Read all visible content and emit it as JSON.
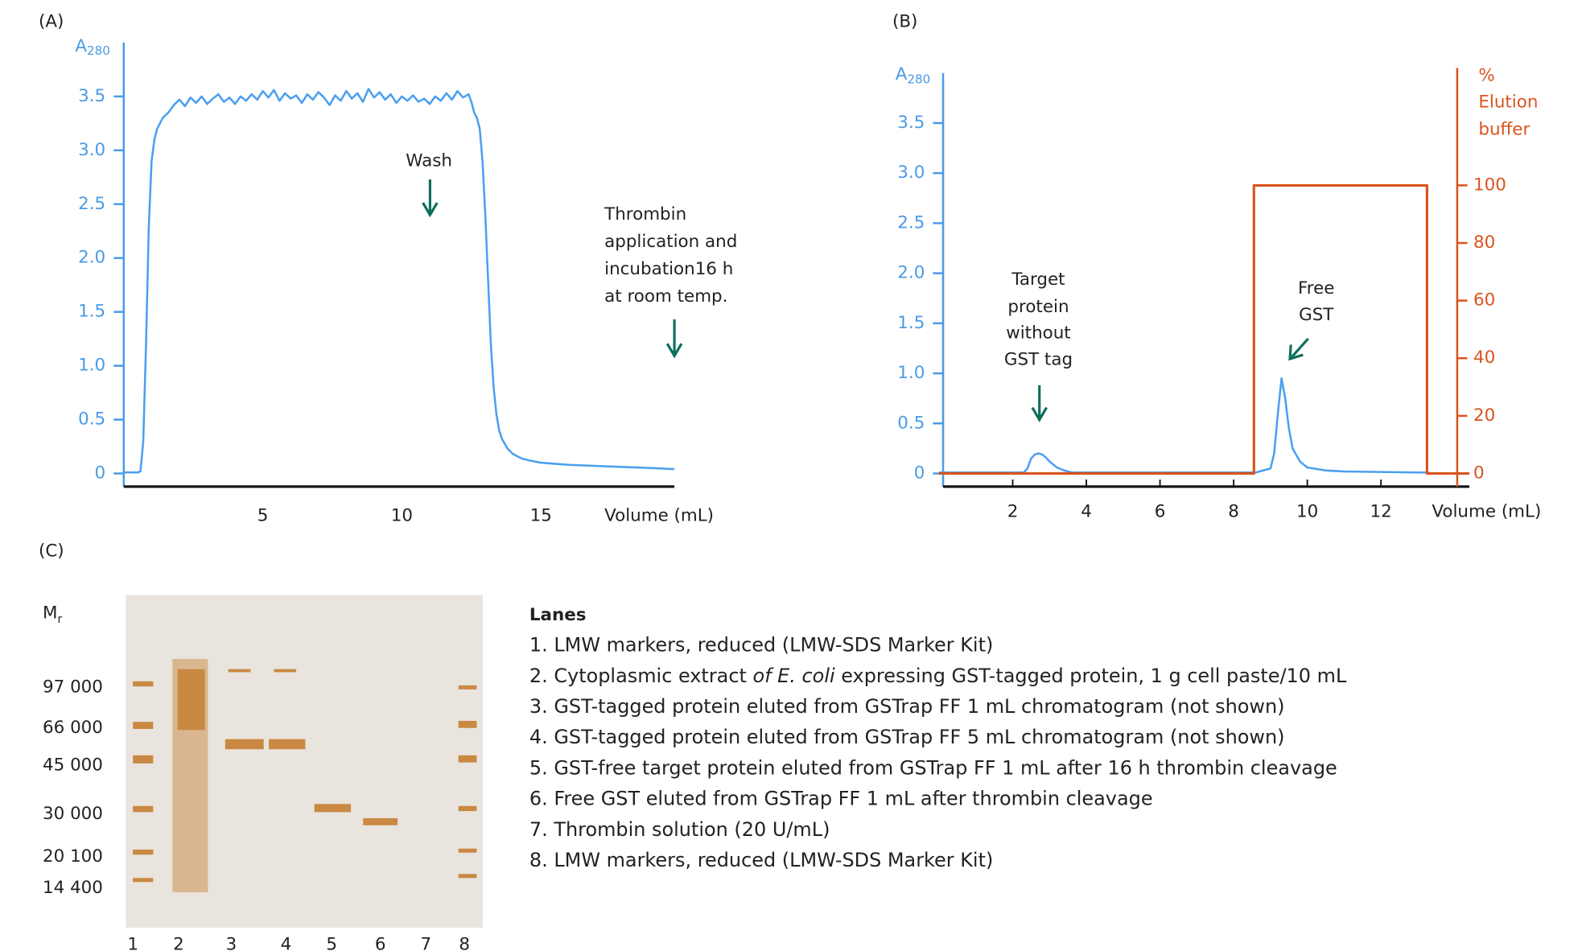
{
  "chart_data": [
    {
      "type": "line",
      "label": "(A)",
      "y_label": "A",
      "y_label_sub": "280",
      "x_label": "Volume (mL)",
      "xlim": [
        0,
        19.8
      ],
      "ylim": [
        0,
        4.0
      ],
      "xticks": [
        5,
        10,
        15
      ],
      "yticks": [
        0,
        0.5,
        {
          "value": 1,
          "label": "1.0"
        },
        1.5,
        {
          "value": 2,
          "label": "2.0"
        },
        2.5,
        {
          "value": 3,
          "label": "3.0"
        },
        3.5
      ],
      "annotations": [
        [
          "Wash"
        ],
        [
          "Thrombin",
          "application and",
          "incubation16 h",
          "at room temp."
        ]
      ],
      "series": [
        {
          "color": "#4a9ff0",
          "x": [
            0,
            0.5,
            0.6,
            0.7,
            0.8,
            0.9,
            1.0,
            1.1,
            1.2,
            1.3,
            1.4,
            1.6,
            1.8,
            2.0,
            2.2,
            2.4,
            2.6,
            2.8,
            3.0,
            3.2,
            3.4,
            3.6,
            3.8,
            4.0,
            4.2,
            4.4,
            4.6,
            4.8,
            5.0,
            5.2,
            5.4,
            5.6,
            5.8,
            6.0,
            6.2,
            6.4,
            6.6,
            6.8,
            7.0,
            7.2,
            7.4,
            7.6,
            7.8,
            8.0,
            8.2,
            8.4,
            8.6,
            8.8,
            9.0,
            9.2,
            9.4,
            9.6,
            9.8,
            10.0,
            10.2,
            10.4,
            10.6,
            10.8,
            11.0,
            11.2,
            11.4,
            11.6,
            11.8,
            12.0,
            12.2,
            12.4,
            12.5,
            12.6,
            12.7,
            12.8,
            12.9,
            13.0,
            13.1,
            13.2,
            13.3,
            13.4,
            13.5,
            13.6,
            13.8,
            14.0,
            14.3,
            14.6,
            15,
            15.5,
            16,
            17,
            18,
            19,
            19.8
          ],
          "values": [
            0.01,
            0.01,
            0.02,
            0.3,
            1.2,
            2.3,
            2.9,
            3.1,
            3.2,
            3.25,
            3.3,
            3.35,
            3.42,
            3.47,
            3.41,
            3.49,
            3.44,
            3.5,
            3.43,
            3.48,
            3.52,
            3.45,
            3.49,
            3.43,
            3.5,
            3.46,
            3.52,
            3.47,
            3.55,
            3.49,
            3.56,
            3.46,
            3.53,
            3.48,
            3.51,
            3.44,
            3.52,
            3.47,
            3.54,
            3.49,
            3.42,
            3.51,
            3.46,
            3.55,
            3.48,
            3.53,
            3.45,
            3.57,
            3.49,
            3.54,
            3.47,
            3.52,
            3.44,
            3.5,
            3.46,
            3.51,
            3.45,
            3.48,
            3.43,
            3.5,
            3.46,
            3.53,
            3.47,
            3.55,
            3.49,
            3.52,
            3.45,
            3.35,
            3.3,
            3.2,
            2.9,
            2.4,
            1.8,
            1.2,
            0.8,
            0.55,
            0.4,
            0.32,
            0.23,
            0.18,
            0.14,
            0.12,
            0.1,
            0.09,
            0.08,
            0.07,
            0.06,
            0.05,
            0.04
          ]
        }
      ]
    },
    {
      "type": "line",
      "label": "(B)",
      "y_label": "A",
      "y_label_sub": "280",
      "x_label": "Volume (mL)",
      "y2_label": [
        "%",
        "Elution",
        "buffer"
      ],
      "xlim": [
        0,
        14.4
      ],
      "ylim": [
        0,
        4.0
      ],
      "y2lim": [
        0,
        139
      ],
      "xticks": [
        2,
        4,
        6,
        8,
        10,
        12
      ],
      "yticks": [
        0,
        0.5,
        {
          "value": 1,
          "label": "1.0"
        },
        1.5,
        {
          "value": 2,
          "label": "2.0"
        },
        2.5,
        {
          "value": 3,
          "label": "3.0"
        },
        3.5
      ],
      "y2ticks": [
        0,
        20,
        40,
        60,
        80,
        100
      ],
      "annotations": [
        [
          "Target",
          "protein",
          "without",
          "GST tag"
        ],
        [
          "Free",
          "GST"
        ]
      ],
      "series": [
        {
          "color": "#4a9ff0",
          "x": [
            0,
            2.3,
            2.4,
            2.5,
            2.6,
            2.7,
            2.8,
            2.9,
            3.0,
            3.2,
            3.4,
            3.6,
            4.0,
            6,
            8,
            8.6,
            9.0,
            9.1,
            9.2,
            9.3,
            9.4,
            9.5,
            9.6,
            9.8,
            10.0,
            10.5,
            11,
            12,
            13,
            13.3
          ],
          "values": [
            0.01,
            0.01,
            0.05,
            0.15,
            0.19,
            0.2,
            0.19,
            0.16,
            0.12,
            0.06,
            0.03,
            0.01,
            0.01,
            0.01,
            0.01,
            0.01,
            0.05,
            0.2,
            0.6,
            0.95,
            0.75,
            0.45,
            0.25,
            0.12,
            0.06,
            0.03,
            0.02,
            0.015,
            0.01,
            0.01
          ]
        },
        {
          "color": "#d9541e",
          "axis": "y2",
          "x": [
            0,
            8.55,
            8.55,
            13.25,
            13.25,
            14.4
          ],
          "values": [
            0,
            0,
            100,
            100,
            0,
            0
          ]
        }
      ]
    }
  ],
  "gel": {
    "label": "(C)",
    "mr_label": "M",
    "mr_sub": "r",
    "markers": [
      "97 000",
      "66 000",
      "45 000",
      "30 000",
      "20 100",
      "14 400"
    ],
    "lane_numbers": [
      "1",
      "2",
      "3",
      "4",
      "5",
      "6",
      "7",
      "8"
    ],
    "lanes_title": "Lanes",
    "lanes": [
      [
        "1. LMW markers, reduced (LMW-SDS Marker Kit)"
      ],
      [
        "2. Cytoplasmic extract ",
        "of E. coli",
        " expressing GST-tagged protein, 1 g cell paste/10 mL"
      ],
      [
        "3. GST-tagged protein eluted from GSTrap FF 1 mL chromatogram (not shown)"
      ],
      [
        "4. GST-tagged protein eluted from GSTrap FF 5 mL chromatogram (not shown)"
      ],
      [
        "5. GST-free target protein eluted from GSTrap FF 1 mL after 16 h thrombin cleavage"
      ],
      [
        "6. Free GST eluted from GSTrap FF 1 mL after thrombin cleavage"
      ],
      [
        "7. Thrombin solution (20 U/mL)"
      ],
      [
        "8. LMW markers, reduced (LMW-SDS Marker Kit)"
      ]
    ]
  }
}
